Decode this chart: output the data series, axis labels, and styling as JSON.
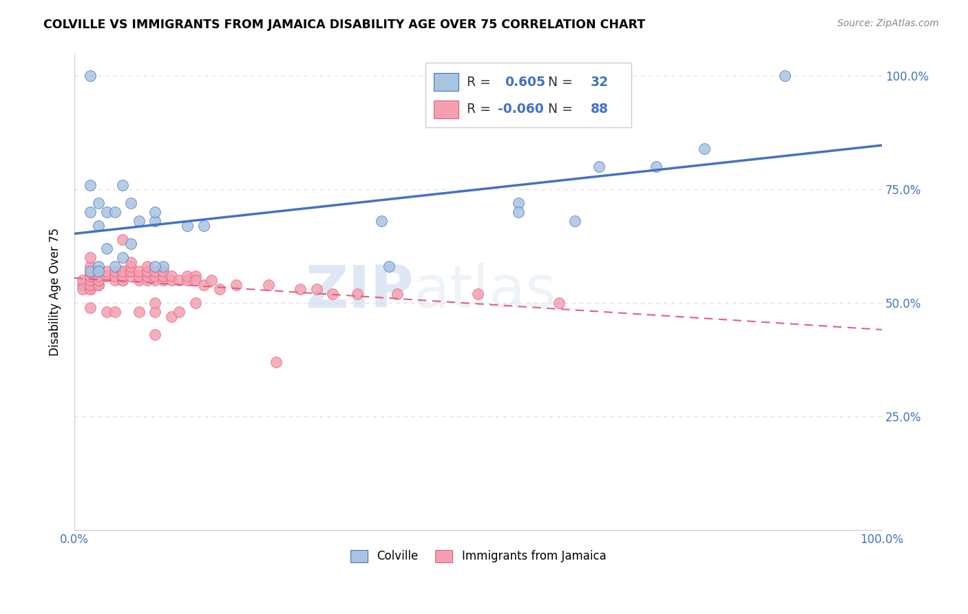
{
  "title": "COLVILLE VS IMMIGRANTS FROM JAMAICA DISABILITY AGE OVER 75 CORRELATION CHART",
  "source": "Source: ZipAtlas.com",
  "ylabel": "Disability Age Over 75",
  "xlim": [
    0.0,
    1.0
  ],
  "ylim": [
    0.0,
    1.05
  ],
  "colville_color": "#a8c4e0",
  "jamaica_color": "#f4a0b0",
  "colville_line_color": "#4472c4",
  "jamaica_line_color": "#e06080",
  "watermark_zip": "ZIP",
  "watermark_atlas": "atlas",
  "colville_R": 0.605,
  "colville_N": 32,
  "jamaica_R": -0.06,
  "jamaica_N": 88,
  "colville_x": [
    0.02,
    0.02,
    0.02,
    0.03,
    0.03,
    0.04,
    0.04,
    0.05,
    0.06,
    0.07,
    0.08,
    0.1,
    0.1,
    0.11,
    0.14,
    0.16,
    0.38,
    0.39,
    0.55,
    0.55,
    0.62,
    0.65,
    0.72,
    0.78,
    0.88,
    0.02,
    0.03,
    0.03,
    0.05,
    0.06,
    0.07,
    0.1
  ],
  "colville_y": [
    1.0,
    0.76,
    0.7,
    0.72,
    0.67,
    0.62,
    0.7,
    0.7,
    0.76,
    0.72,
    0.68,
    0.68,
    0.7,
    0.58,
    0.67,
    0.67,
    0.68,
    0.58,
    0.72,
    0.7,
    0.68,
    0.8,
    0.8,
    0.84,
    1.0,
    0.57,
    0.58,
    0.57,
    0.58,
    0.6,
    0.63,
    0.58
  ],
  "jamaica_x": [
    0.01,
    0.01,
    0.01,
    0.02,
    0.02,
    0.02,
    0.02,
    0.02,
    0.02,
    0.02,
    0.02,
    0.02,
    0.02,
    0.02,
    0.02,
    0.02,
    0.02,
    0.02,
    0.03,
    0.03,
    0.03,
    0.03,
    0.03,
    0.03,
    0.03,
    0.03,
    0.03,
    0.04,
    0.04,
    0.04,
    0.04,
    0.05,
    0.05,
    0.05,
    0.05,
    0.06,
    0.06,
    0.06,
    0.06,
    0.06,
    0.06,
    0.06,
    0.07,
    0.07,
    0.07,
    0.07,
    0.07,
    0.08,
    0.08,
    0.08,
    0.08,
    0.09,
    0.09,
    0.09,
    0.09,
    0.09,
    0.1,
    0.1,
    0.1,
    0.1,
    0.1,
    0.1,
    0.11,
    0.11,
    0.11,
    0.12,
    0.12,
    0.12,
    0.13,
    0.13,
    0.14,
    0.14,
    0.15,
    0.15,
    0.15,
    0.16,
    0.17,
    0.18,
    0.2,
    0.24,
    0.25,
    0.28,
    0.3,
    0.32,
    0.35,
    0.4,
    0.5,
    0.6
  ],
  "jamaica_y": [
    0.54,
    0.55,
    0.53,
    0.53,
    0.53,
    0.54,
    0.54,
    0.55,
    0.55,
    0.54,
    0.55,
    0.56,
    0.56,
    0.57,
    0.57,
    0.58,
    0.6,
    0.49,
    0.54,
    0.54,
    0.55,
    0.55,
    0.56,
    0.56,
    0.55,
    0.56,
    0.57,
    0.56,
    0.56,
    0.57,
    0.48,
    0.55,
    0.56,
    0.57,
    0.48,
    0.57,
    0.55,
    0.55,
    0.56,
    0.56,
    0.57,
    0.64,
    0.56,
    0.57,
    0.57,
    0.58,
    0.59,
    0.55,
    0.56,
    0.57,
    0.48,
    0.55,
    0.56,
    0.57,
    0.57,
    0.58,
    0.55,
    0.56,
    0.57,
    0.48,
    0.43,
    0.5,
    0.55,
    0.56,
    0.57,
    0.55,
    0.56,
    0.47,
    0.55,
    0.48,
    0.55,
    0.56,
    0.56,
    0.55,
    0.5,
    0.54,
    0.55,
    0.53,
    0.54,
    0.54,
    0.37,
    0.53,
    0.53,
    0.52,
    0.52,
    0.52,
    0.52,
    0.5
  ]
}
